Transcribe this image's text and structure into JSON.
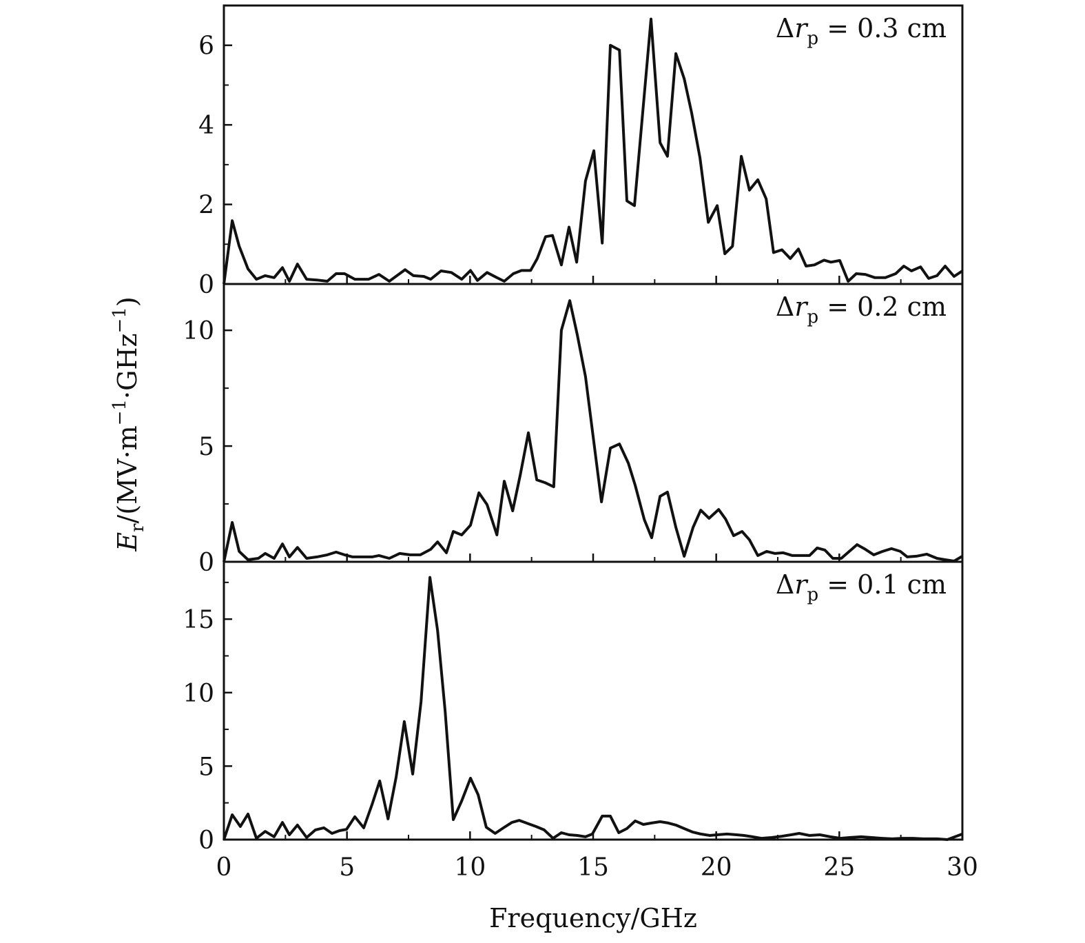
{
  "chart_data": {
    "type": "line",
    "layout": "three vertically stacked panels sharing x axis",
    "xlabel": "Frequency/GHz",
    "ylabel": {
      "main": "E",
      "sub": "r",
      "unit_a": "/(MV·m",
      "sup_a": "−1",
      "unit_b": "·GHz",
      "sup_b": "−1",
      "close": ")"
    },
    "xlim": [
      0,
      30
    ],
    "xticks": [
      0,
      5,
      10,
      15,
      20,
      25,
      30
    ],
    "grid": false,
    "legend": "none",
    "series_color": "#111111",
    "panels": [
      {
        "annotation": {
          "delta": "Δ",
          "var": "r",
          "sub": "p",
          "value": "= 0.3 cm"
        },
        "ylim": [
          0,
          7
        ],
        "yticks": [
          0,
          2,
          4,
          6
        ],
        "x": [
          0,
          0.34,
          0.62,
          0.98,
          1.32,
          1.68,
          2.04,
          2.38,
          2.66,
          2.99,
          3.36,
          3.78,
          4.2,
          4.56,
          4.9,
          5.32,
          5.88,
          6.3,
          6.72,
          7.36,
          7.7,
          8.12,
          8.4,
          8.82,
          9.24,
          9.66,
          10.02,
          10.3,
          10.69,
          11.06,
          11.39,
          11.76,
          12.09,
          12.46,
          12.73,
          13.07,
          13.35,
          13.71,
          14.02,
          14.33,
          14.69,
          15.03,
          15.37,
          15.7,
          16.07,
          16.37,
          16.68,
          17.35,
          17.72,
          18.02,
          18.36,
          18.7,
          19.0,
          19.34,
          19.68,
          20.04,
          20.35,
          20.66,
          21.02,
          21.35,
          21.69,
          22.03,
          22.33,
          22.67,
          23.01,
          23.34,
          23.65,
          23.99,
          24.38,
          24.66,
          25.02,
          25.36,
          25.69,
          26.06,
          26.45,
          26.87,
          27.29,
          27.62,
          27.93,
          28.3,
          28.63,
          28.97,
          29.3,
          29.66,
          30
        ],
        "y": [
          0,
          1.59,
          0.95,
          0.38,
          0.12,
          0.21,
          0.16,
          0.41,
          0.07,
          0.5,
          0.12,
          0.1,
          0.07,
          0.26,
          0.26,
          0.12,
          0.12,
          0.24,
          0.07,
          0.36,
          0.21,
          0.19,
          0.12,
          0.33,
          0.29,
          0.12,
          0.34,
          0.09,
          0.29,
          0.17,
          0.07,
          0.26,
          0.34,
          0.34,
          0.64,
          1.19,
          1.22,
          0.48,
          1.43,
          0.55,
          2.59,
          3.35,
          1.03,
          6.0,
          5.88,
          2.09,
          1.97,
          6.66,
          3.55,
          3.21,
          5.79,
          5.16,
          4.31,
          3.17,
          1.55,
          1.97,
          0.76,
          0.95,
          3.21,
          2.36,
          2.62,
          2.14,
          0.79,
          0.86,
          0.64,
          0.88,
          0.45,
          0.48,
          0.6,
          0.55,
          0.59,
          0.07,
          0.26,
          0.24,
          0.16,
          0.16,
          0.26,
          0.45,
          0.33,
          0.43,
          0.14,
          0.21,
          0.45,
          0.19,
          0.33
        ]
      },
      {
        "annotation": {
          "delta": "Δ",
          "var": "r",
          "sub": "p",
          "value": "= 0.2 cm"
        },
        "ylim": [
          0,
          12
        ],
        "yticks": [
          0,
          5,
          10
        ],
        "x": [
          0,
          0.34,
          0.62,
          0.98,
          1.4,
          1.68,
          2.04,
          2.38,
          2.66,
          2.99,
          3.36,
          3.78,
          4.2,
          4.56,
          4.9,
          5.23,
          6.02,
          6.3,
          6.72,
          7.14,
          7.56,
          7.98,
          8.4,
          8.68,
          9.04,
          9.32,
          9.66,
          10.02,
          10.36,
          10.69,
          11.09,
          11.39,
          11.73,
          12.04,
          12.37,
          12.71,
          13.04,
          13.4,
          13.71,
          14.05,
          14.36,
          14.69,
          15.34,
          15.7,
          16.07,
          16.43,
          16.71,
          17.08,
          17.38,
          17.72,
          18.02,
          18.36,
          18.7,
          19.06,
          19.37,
          19.71,
          20.1,
          20.38,
          20.71,
          21.05,
          21.35,
          21.69,
          22.05,
          22.39,
          22.72,
          23.09,
          23.51,
          23.79,
          24.1,
          24.41,
          24.74,
          25.08,
          25.72,
          26.06,
          26.4,
          26.76,
          27.12,
          27.48,
          27.76,
          28.13,
          28.55,
          28.97,
          29.3,
          29.66,
          30
        ],
        "y": [
          0,
          1.7,
          0.45,
          0.09,
          0.15,
          0.36,
          0.15,
          0.77,
          0.21,
          0.62,
          0.15,
          0.21,
          0.3,
          0.42,
          0.3,
          0.21,
          0.21,
          0.27,
          0.15,
          0.36,
          0.3,
          0.3,
          0.54,
          0.86,
          0.39,
          1.31,
          1.16,
          1.58,
          2.98,
          2.47,
          1.16,
          3.48,
          2.2,
          3.75,
          5.57,
          3.54,
          3.42,
          3.24,
          10.0,
          11.28,
          9.79,
          8.0,
          2.59,
          4.91,
          5.09,
          4.26,
          3.3,
          1.82,
          1.04,
          2.83,
          3.01,
          1.49,
          0.24,
          1.49,
          2.23,
          1.88,
          2.26,
          1.85,
          1.13,
          1.31,
          0.95,
          0.27,
          0.45,
          0.36,
          0.39,
          0.27,
          0.27,
          0.27,
          0.6,
          0.51,
          0.15,
          0.15,
          0.74,
          0.54,
          0.3,
          0.45,
          0.57,
          0.45,
          0.21,
          0.24,
          0.33,
          0.15,
          0.09,
          0.03,
          0.24
        ]
      },
      {
        "annotation": {
          "delta": "Δ",
          "var": "r",
          "sub": "p",
          "value": "= 0.1 cm"
        },
        "ylim": [
          0,
          18.9
        ],
        "yticks": [
          0,
          5,
          10,
          15
        ],
        "x": [
          0,
          0.34,
          0.67,
          0.98,
          1.32,
          1.68,
          2.04,
          2.38,
          2.66,
          2.99,
          3.36,
          3.72,
          4.06,
          4.39,
          4.7,
          4.98,
          5.32,
          5.68,
          6.02,
          6.33,
          6.67,
          7.0,
          7.33,
          7.67,
          8.01,
          8.37,
          8.68,
          8.99,
          9.32,
          9.66,
          10.02,
          10.33,
          10.66,
          11.02,
          11.36,
          11.7,
          12.0,
          12.37,
          12.68,
          13.01,
          13.37,
          13.71,
          14.02,
          14.36,
          14.69,
          14.97,
          15.37,
          15.7,
          16.04,
          16.37,
          16.71,
          17.04,
          17.38,
          17.72,
          18.05,
          18.36,
          18.7,
          19.03,
          19.37,
          19.74,
          20.04,
          20.44,
          20.83,
          21.13,
          21.47,
          21.83,
          22.25,
          22.67,
          23.04,
          23.37,
          23.79,
          24.21,
          24.63,
          25.05,
          25.41,
          25.89,
          26.31,
          26.73,
          27.15,
          27.57,
          27.99,
          28.41,
          28.97,
          29.39,
          30
        ],
        "y": [
          0,
          1.69,
          0.89,
          1.74,
          0.09,
          0.56,
          0.19,
          1.17,
          0.33,
          0.99,
          0.14,
          0.66,
          0.8,
          0.42,
          0.61,
          0.7,
          1.55,
          0.8,
          2.39,
          3.99,
          1.41,
          4.27,
          8.03,
          4.46,
          9.39,
          17.84,
          14.23,
          8.73,
          1.36,
          2.63,
          4.18,
          3.05,
          0.84,
          0.42,
          0.8,
          1.17,
          1.31,
          1.08,
          0.89,
          0.66,
          0.09,
          0.47,
          0.33,
          0.28,
          0.19,
          0.38,
          1.6,
          1.6,
          0.47,
          0.75,
          1.27,
          1.03,
          1.13,
          1.22,
          1.13,
          0.99,
          0.75,
          0.52,
          0.38,
          0.28,
          0.33,
          0.38,
          0.33,
          0.28,
          0.19,
          0.09,
          0.14,
          0.23,
          0.33,
          0.42,
          0.28,
          0.33,
          0.19,
          0.09,
          0.14,
          0.19,
          0.14,
          0.09,
          0.05,
          0.09,
          0.09,
          0.05,
          0.05,
          0,
          0.38
        ]
      }
    ]
  }
}
